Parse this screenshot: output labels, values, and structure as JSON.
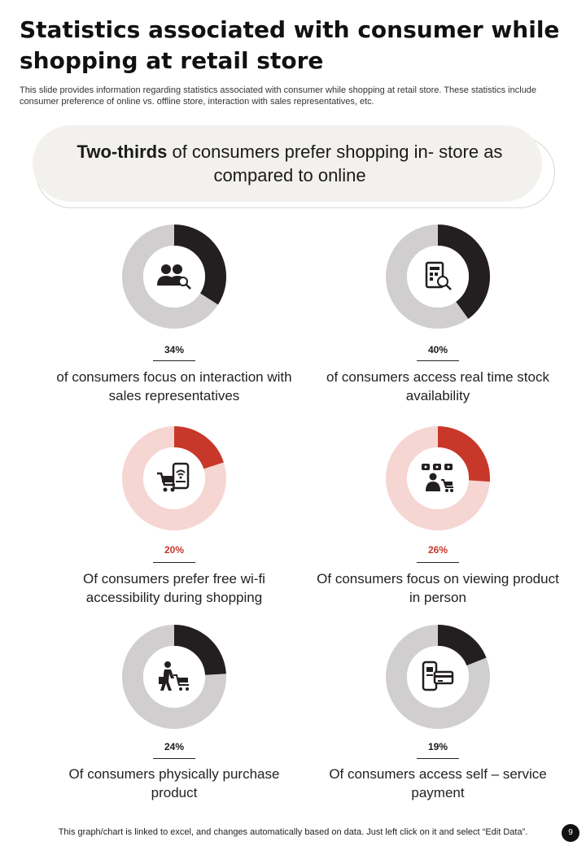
{
  "header": {
    "title": "Statistics associated with consumer while shopping at retail store",
    "subtitle": "This slide provides information regarding statistics associated with consumer while shopping at retail store. These statistics include consumer preference of online vs. offline store, interaction with sales representatives, etc."
  },
  "banner": {
    "bold": "Two-thirds",
    "rest": " of consumers prefer shopping in- store as compared to online"
  },
  "colors": {
    "dark": "#231f20",
    "light_gray": "#d1cecf",
    "red": "#c8382a",
    "light_red": "#f6d6d2"
  },
  "chart_data": [
    {
      "type": "pie",
      "variant": "donut",
      "percent_label": "34%",
      "value": 34,
      "remainder": 66,
      "description": "of consumers focus on interaction with sales representatives",
      "theme": "dark",
      "icon": "people-search-icon"
    },
    {
      "type": "pie",
      "variant": "donut",
      "percent_label": "40%",
      "value": 40,
      "remainder": 60,
      "description": "of consumers access real time stock availability",
      "theme": "dark",
      "icon": "stock-check-icon"
    },
    {
      "type": "pie",
      "variant": "donut",
      "percent_label": "20%",
      "value": 20,
      "remainder": 80,
      "description": "Of consumers prefer free wi-fi accessibility during shopping",
      "theme": "red",
      "icon": "wifi-cart-icon"
    },
    {
      "type": "pie",
      "variant": "donut",
      "percent_label": "26%",
      "value": 26,
      "remainder": 74,
      "description": "Of consumers focus on viewing product in person",
      "theme": "red",
      "icon": "shopper-cart-icon"
    },
    {
      "type": "pie",
      "variant": "donut",
      "percent_label": "24%",
      "value": 24,
      "remainder": 76,
      "description": "Of consumers physically purchase product",
      "theme": "dark",
      "icon": "person-cart-icon"
    },
    {
      "type": "pie",
      "variant": "donut",
      "percent_label": "19%",
      "value": 19,
      "remainder": 81,
      "description": "Of consumers access self – service payment",
      "theme": "dark",
      "icon": "mobile-payment-icon"
    }
  ],
  "footer": {
    "note": "This graph/chart is linked to excel, and changes automatically based on data. Just left click on it and select “Edit Data”.",
    "page": "9"
  }
}
